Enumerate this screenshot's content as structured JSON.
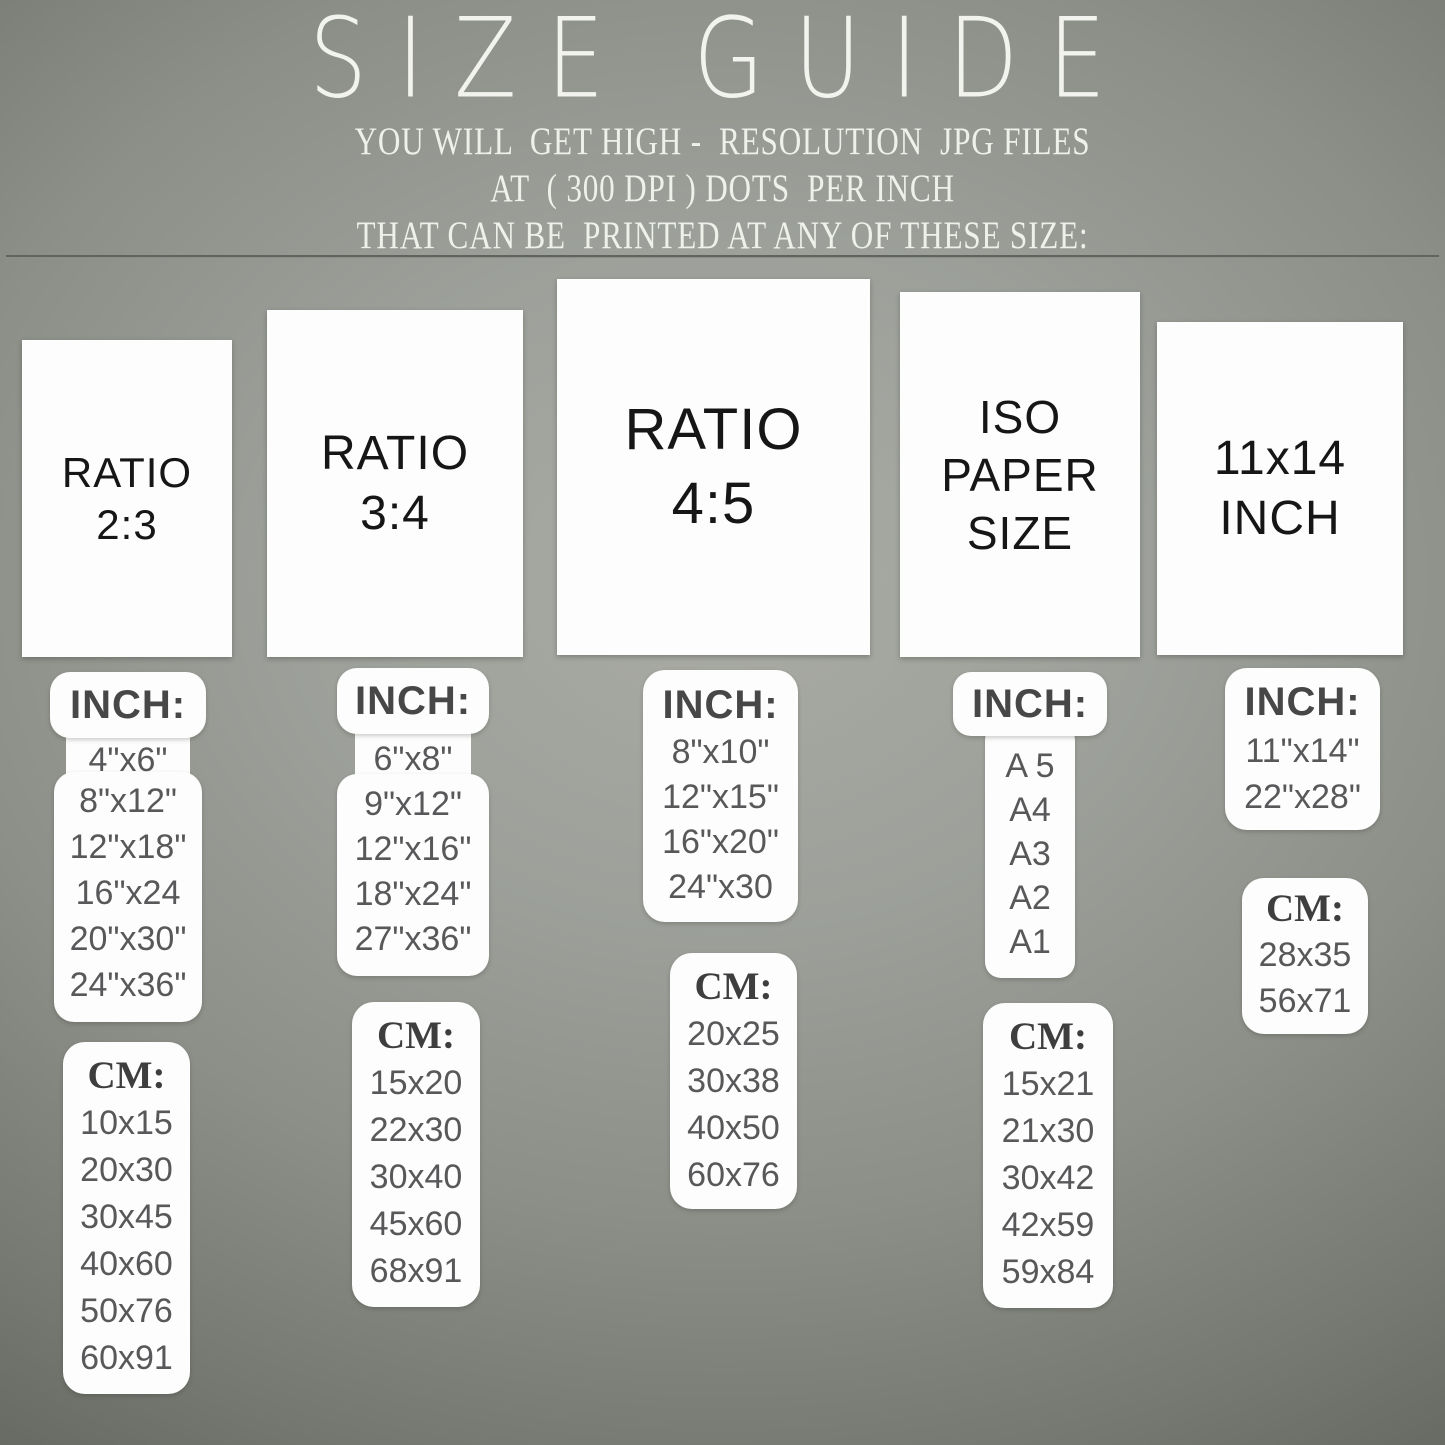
{
  "header": {
    "title": "SIZE GUIDE",
    "subtitle_lines": [
      "YOU WILL  GET HIGH -  RESOLUTION  JPG FILES",
      "AT  ( 300 DPI ) DOTS  PER INCH",
      "THAT CAN BE  PRINTED AT ANY OF THESE SIZE:"
    ]
  },
  "columns": [
    {
      "id": "ratio-2-3",
      "paper_label_lines": [
        "RATIO",
        "2:3"
      ],
      "inch": {
        "label": "INCH:",
        "sizes": [
          "4\"x6\"",
          "8\"x12\"",
          "12\"x18\"",
          "16\"x24",
          "20\"x30\"",
          "24\"x36\""
        ]
      },
      "cm": {
        "label": "CM:",
        "sizes": [
          "10x15",
          "20x30",
          "30x45",
          "40x60",
          "50x76",
          "60x91"
        ]
      }
    },
    {
      "id": "ratio-3-4",
      "paper_label_lines": [
        "RATIO",
        "3:4"
      ],
      "inch": {
        "label": "INCH:",
        "sizes": [
          "6\"x8\"",
          "9\"x12\"",
          "12\"x16\"",
          "18\"x24\"",
          "27\"x36\""
        ]
      },
      "cm": {
        "label": "CM:",
        "sizes": [
          "15x20",
          "22x30",
          "30x40",
          "45x60",
          "68x91"
        ]
      }
    },
    {
      "id": "ratio-4-5",
      "paper_label_lines": [
        "RATIO",
        "4:5"
      ],
      "inch": {
        "label": "INCH:",
        "sizes": [
          "8\"x10\"",
          "12\"x15\"",
          "16\"x20\"",
          "24\"x30"
        ]
      },
      "cm": {
        "label": "CM:",
        "sizes": [
          "20x25",
          "30x38",
          "40x50",
          "60x76"
        ]
      }
    },
    {
      "id": "iso-paper-size",
      "paper_label_lines": [
        "ISO",
        "PAPER",
        "SIZE"
      ],
      "inch": {
        "label": "INCH:",
        "sizes": [
          "A 5",
          "A4",
          "A3",
          "A2",
          "A1"
        ]
      },
      "cm": {
        "label": "CM:",
        "sizes": [
          "15x21",
          "21x30",
          "30x42",
          "42x59",
          "59x84"
        ]
      }
    },
    {
      "id": "11x14-inch",
      "paper_label_lines": [
        "11x14",
        "INCH"
      ],
      "inch": {
        "label": "INCH:",
        "sizes": [
          "11\"x14\"",
          "22\"x28\""
        ]
      },
      "cm": {
        "label": "CM:",
        "sizes": [
          "28x35",
          "56x71"
        ]
      }
    }
  ],
  "colors": {
    "background_center": "#a9aba4",
    "background_edge": "#4c514a",
    "card_white": "#fcfdfc",
    "header_text": "#f2f3ef",
    "paper_label_text": "#161616",
    "inch_label_text": "#474747",
    "cm_label_text": "#3e3e3e",
    "size_text": "#58585a"
  }
}
